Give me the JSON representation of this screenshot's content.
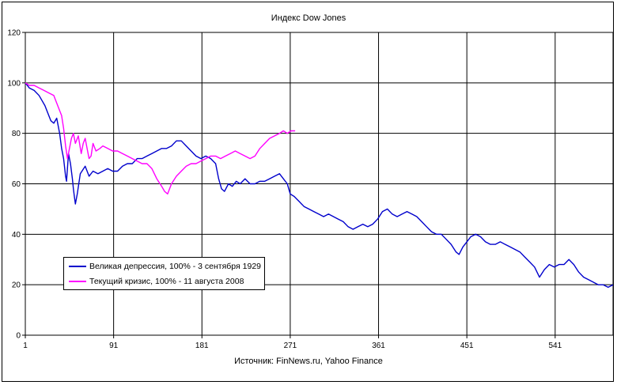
{
  "chart_data": {
    "type": "line",
    "title": "Индекс Dow Jones",
    "xlabel": "Источник: FinNews.ru, Yahoo Finance",
    "ylabel": "",
    "xlim": [
      1,
      600
    ],
    "ylim": [
      0,
      120
    ],
    "x_ticks": [
      1,
      91,
      181,
      271,
      361,
      451,
      541
    ],
    "y_ticks": [
      0,
      20,
      40,
      60,
      80,
      100,
      120
    ],
    "grid": true,
    "legend_position": "lower-left",
    "series": [
      {
        "name": "Великая депрессия, 100% - 3 сентября 1929",
        "color": "#0000cc",
        "points": [
          [
            1,
            100
          ],
          [
            5,
            98
          ],
          [
            10,
            97
          ],
          [
            15,
            95
          ],
          [
            18,
            93
          ],
          [
            21,
            91
          ],
          [
            24,
            88
          ],
          [
            27,
            85
          ],
          [
            30,
            84
          ],
          [
            33,
            86
          ],
          [
            36,
            80
          ],
          [
            38,
            74
          ],
          [
            40,
            70
          ],
          [
            42,
            63
          ],
          [
            43,
            61
          ],
          [
            45,
            72
          ],
          [
            47,
            68
          ],
          [
            49,
            62
          ],
          [
            50,
            58
          ],
          [
            51,
            55
          ],
          [
            52,
            52
          ],
          [
            54,
            56
          ],
          [
            57,
            64
          ],
          [
            62,
            67
          ],
          [
            66,
            63
          ],
          [
            70,
            65
          ],
          [
            75,
            64
          ],
          [
            80,
            65
          ],
          [
            85,
            66
          ],
          [
            90,
            65
          ],
          [
            95,
            65
          ],
          [
            100,
            67
          ],
          [
            105,
            68
          ],
          [
            110,
            68
          ],
          [
            115,
            70
          ],
          [
            120,
            70
          ],
          [
            125,
            71
          ],
          [
            130,
            72
          ],
          [
            135,
            73
          ],
          [
            140,
            74
          ],
          [
            145,
            74
          ],
          [
            150,
            75
          ],
          [
            155,
            77
          ],
          [
            160,
            77
          ],
          [
            165,
            75
          ],
          [
            170,
            73
          ],
          [
            175,
            71
          ],
          [
            180,
            70
          ],
          [
            185,
            71
          ],
          [
            190,
            70
          ],
          [
            195,
            68
          ],
          [
            198,
            62
          ],
          [
            201,
            58
          ],
          [
            204,
            57
          ],
          [
            208,
            60
          ],
          [
            212,
            59
          ],
          [
            216,
            61
          ],
          [
            220,
            60
          ],
          [
            225,
            62
          ],
          [
            230,
            60
          ],
          [
            235,
            60
          ],
          [
            240,
            61
          ],
          [
            245,
            61
          ],
          [
            250,
            62
          ],
          [
            255,
            63
          ],
          [
            260,
            64
          ],
          [
            264,
            62
          ],
          [
            268,
            60
          ],
          [
            271,
            56
          ],
          [
            275,
            55
          ],
          [
            280,
            53
          ],
          [
            285,
            51
          ],
          [
            290,
            50
          ],
          [
            295,
            49
          ],
          [
            300,
            48
          ],
          [
            305,
            47
          ],
          [
            310,
            48
          ],
          [
            315,
            47
          ],
          [
            320,
            46
          ],
          [
            325,
            45
          ],
          [
            330,
            43
          ],
          [
            335,
            42
          ],
          [
            340,
            43
          ],
          [
            345,
            44
          ],
          [
            350,
            43
          ],
          [
            355,
            44
          ],
          [
            360,
            46
          ],
          [
            365,
            49
          ],
          [
            370,
            50
          ],
          [
            375,
            48
          ],
          [
            380,
            47
          ],
          [
            385,
            48
          ],
          [
            390,
            49
          ],
          [
            395,
            48
          ],
          [
            400,
            47
          ],
          [
            405,
            45
          ],
          [
            410,
            43
          ],
          [
            415,
            41
          ],
          [
            420,
            40
          ],
          [
            425,
            40
          ],
          [
            430,
            38
          ],
          [
            435,
            36
          ],
          [
            440,
            33
          ],
          [
            443,
            32
          ],
          [
            447,
            35
          ],
          [
            451,
            37
          ],
          [
            455,
            39
          ],
          [
            460,
            40
          ],
          [
            465,
            39
          ],
          [
            470,
            37
          ],
          [
            475,
            36
          ],
          [
            480,
            36
          ],
          [
            485,
            37
          ],
          [
            490,
            36
          ],
          [
            495,
            35
          ],
          [
            500,
            34
          ],
          [
            505,
            33
          ],
          [
            510,
            31
          ],
          [
            515,
            29
          ],
          [
            520,
            27
          ],
          [
            525,
            23
          ],
          [
            530,
            26
          ],
          [
            535,
            28
          ],
          [
            540,
            27
          ],
          [
            545,
            28
          ],
          [
            550,
            28
          ],
          [
            555,
            30
          ],
          [
            560,
            28
          ],
          [
            565,
            25
          ],
          [
            570,
            23
          ],
          [
            575,
            22
          ],
          [
            580,
            21
          ],
          [
            585,
            20
          ],
          [
            590,
            20
          ],
          [
            595,
            19
          ],
          [
            600,
            20
          ]
        ]
      },
      {
        "name": "Текущий кризис, 100% - 11 августа 2008",
        "color": "#ff00ff",
        "points": [
          [
            1,
            100
          ],
          [
            5,
            99
          ],
          [
            10,
            99
          ],
          [
            15,
            98
          ],
          [
            20,
            97
          ],
          [
            25,
            96
          ],
          [
            30,
            95
          ],
          [
            33,
            92
          ],
          [
            36,
            89
          ],
          [
            38,
            87
          ],
          [
            40,
            82
          ],
          [
            42,
            75
          ],
          [
            44,
            70
          ],
          [
            46,
            74
          ],
          [
            48,
            78
          ],
          [
            50,
            80
          ],
          [
            52,
            76
          ],
          [
            55,
            79
          ],
          [
            58,
            72
          ],
          [
            60,
            76
          ],
          [
            62,
            78
          ],
          [
            64,
            74
          ],
          [
            66,
            70
          ],
          [
            68,
            71
          ],
          [
            70,
            76
          ],
          [
            73,
            73
          ],
          [
            77,
            74
          ],
          [
            80,
            75
          ],
          [
            85,
            74
          ],
          [
            90,
            73
          ],
          [
            95,
            73
          ],
          [
            100,
            72
          ],
          [
            105,
            71
          ],
          [
            110,
            70
          ],
          [
            115,
            69
          ],
          [
            120,
            68
          ],
          [
            125,
            68
          ],
          [
            130,
            66
          ],
          [
            135,
            62
          ],
          [
            140,
            59
          ],
          [
            143,
            57
          ],
          [
            146,
            56
          ],
          [
            150,
            60
          ],
          [
            155,
            63
          ],
          [
            160,
            65
          ],
          [
            165,
            67
          ],
          [
            170,
            68
          ],
          [
            175,
            68
          ],
          [
            180,
            69
          ],
          [
            185,
            70
          ],
          [
            190,
            71
          ],
          [
            195,
            71
          ],
          [
            200,
            70
          ],
          [
            205,
            71
          ],
          [
            210,
            72
          ],
          [
            215,
            73
          ],
          [
            220,
            72
          ],
          [
            225,
            71
          ],
          [
            230,
            70
          ],
          [
            235,
            71
          ],
          [
            240,
            74
          ],
          [
            245,
            76
          ],
          [
            250,
            78
          ],
          [
            255,
            79
          ],
          [
            260,
            80
          ],
          [
            264,
            81
          ],
          [
            268,
            80
          ],
          [
            272,
            81
          ],
          [
            276,
            81
          ]
        ]
      }
    ]
  }
}
